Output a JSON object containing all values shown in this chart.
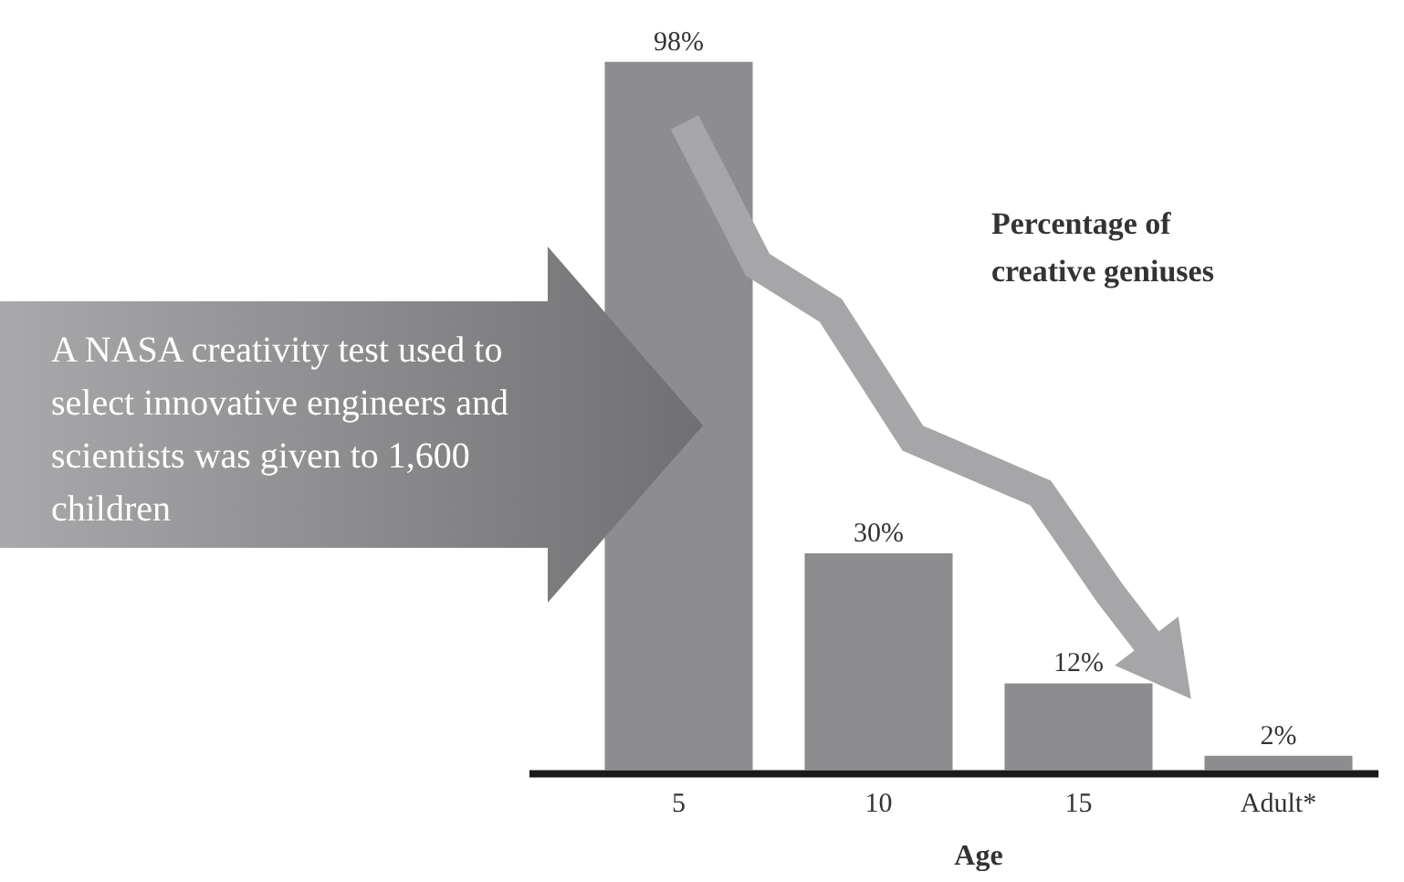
{
  "chart_data": {
    "type": "bar",
    "categories": [
      "5",
      "10",
      "15",
      "Adult*"
    ],
    "values": [
      98,
      30,
      12,
      2
    ],
    "color": "#8d8d8f",
    "data_labels": true,
    "value_labels": [
      "98%",
      "30%",
      "12%",
      "2%"
    ],
    "xlabel": "Age",
    "tick_labels": "x",
    "grid": false,
    "legend": false,
    "annotations": [
      "A NASA creativity test used to select innovative engineers and scientists was given to 1,600 children",
      "Percentage of creative geniuses"
    ]
  }
}
